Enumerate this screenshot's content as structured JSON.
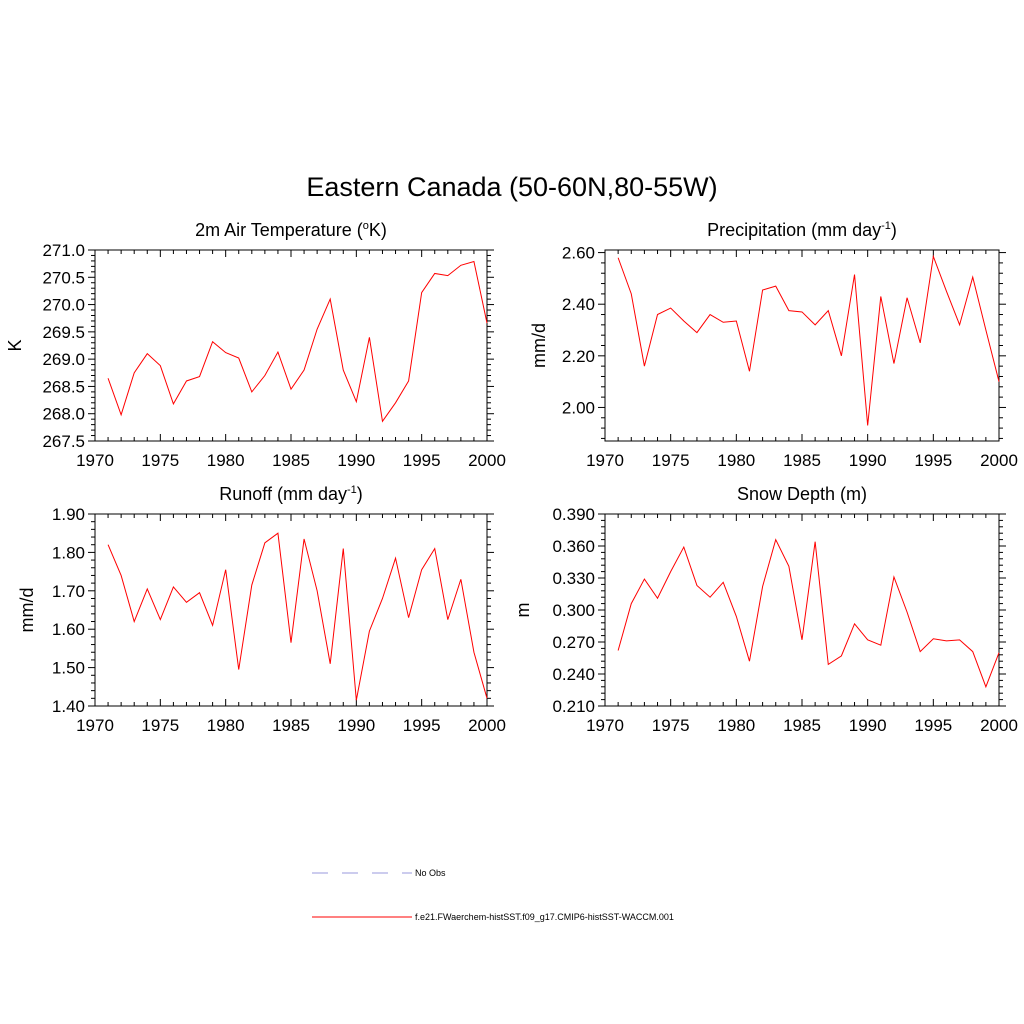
{
  "title": "Eastern Canada (50-60N,80-55W)",
  "colors": {
    "model": "#ff0000",
    "obs": "#9999dd",
    "axis": "#000000"
  },
  "legend": [
    {
      "label": "No Obs",
      "style": "dashed",
      "color": "#9999dd"
    },
    {
      "label": "f.e21.FWaerchem-histSST.f09_g17.CMIP6-histSST-WACCM.001",
      "style": "solid",
      "color": "#ff0000"
    }
  ],
  "chart_data": [
    {
      "type": "line",
      "title": "2m Air Temperature (",
      "title_sup": "o",
      "title_after": "K)",
      "ylabel": "K",
      "xlim": [
        1970,
        2000
      ],
      "ylim": [
        267.5,
        271.0
      ],
      "xticks": [
        1970,
        1975,
        1980,
        1985,
        1990,
        1995,
        2000
      ],
      "yticks": [
        "267.5",
        "268.0",
        "268.5",
        "269.0",
        "269.5",
        "270.0",
        "270.5",
        "271.0"
      ],
      "x": [
        1971,
        1972,
        1973,
        1974,
        1975,
        1976,
        1977,
        1978,
        1979,
        1980,
        1981,
        1982,
        1983,
        1984,
        1985,
        1986,
        1987,
        1988,
        1989,
        1990,
        1991,
        1992,
        1993,
        1994,
        1995,
        1996,
        1997,
        1998,
        1999,
        2000
      ],
      "series": [
        {
          "values": [
            268.65,
            267.98,
            268.75,
            269.1,
            268.88,
            268.18,
            268.6,
            268.68,
            269.32,
            269.12,
            269.02,
            268.4,
            268.7,
            269.13,
            268.45,
            268.8,
            269.55,
            270.1,
            268.8,
            268.22,
            269.4,
            267.86,
            268.2,
            268.6,
            270.22,
            270.57,
            270.53,
            270.72,
            270.79,
            269.66
          ]
        }
      ]
    },
    {
      "type": "line",
      "title": "Precipitation (mm day",
      "title_sup": "-1",
      "title_after": ")",
      "ylabel": "mm/d",
      "xlim": [
        1970,
        2000
      ],
      "ylim": [
        1.87,
        2.61
      ],
      "xticks": [
        1970,
        1975,
        1980,
        1985,
        1990,
        1995,
        2000
      ],
      "yticks": [
        "2.00",
        "2.20",
        "2.40",
        "2.60"
      ],
      "x": [
        1971,
        1972,
        1973,
        1974,
        1975,
        1976,
        1977,
        1978,
        1979,
        1980,
        1981,
        1982,
        1983,
        1984,
        1985,
        1986,
        1987,
        1988,
        1989,
        1990,
        1991,
        1992,
        1993,
        1994,
        1995,
        1996,
        1997,
        1998,
        1999,
        2000
      ],
      "series": [
        {
          "values": [
            2.58,
            2.44,
            2.16,
            2.36,
            2.385,
            2.335,
            2.29,
            2.36,
            2.33,
            2.335,
            2.14,
            2.455,
            2.47,
            2.375,
            2.37,
            2.32,
            2.375,
            2.2,
            2.515,
            1.93,
            2.43,
            2.17,
            2.425,
            2.25,
            2.585,
            2.45,
            2.32,
            2.505,
            2.3,
            2.1
          ]
        }
      ]
    },
    {
      "type": "line",
      "title": "Runoff (mm day",
      "title_sup": "-1",
      "title_after": ")",
      "ylabel": "mm/d",
      "xlim": [
        1970,
        2000
      ],
      "ylim": [
        1.4,
        1.9
      ],
      "xticks": [
        1970,
        1975,
        1980,
        1985,
        1990,
        1995,
        2000
      ],
      "yticks": [
        "1.40",
        "1.50",
        "1.60",
        "1.70",
        "1.80",
        "1.90"
      ],
      "x": [
        1971,
        1972,
        1973,
        1974,
        1975,
        1976,
        1977,
        1978,
        1979,
        1980,
        1981,
        1982,
        1983,
        1984,
        1985,
        1986,
        1987,
        1988,
        1989,
        1990,
        1991,
        1992,
        1993,
        1994,
        1995,
        1996,
        1997,
        1998,
        1999,
        2000
      ],
      "series": [
        {
          "values": [
            1.82,
            1.74,
            1.62,
            1.705,
            1.625,
            1.71,
            1.67,
            1.695,
            1.61,
            1.755,
            1.495,
            1.715,
            1.825,
            1.85,
            1.565,
            1.835,
            1.7,
            1.51,
            1.81,
            1.415,
            1.595,
            1.68,
            1.785,
            1.63,
            1.755,
            1.81,
            1.625,
            1.73,
            1.54,
            1.42
          ]
        }
      ]
    },
    {
      "type": "line",
      "title": "Snow Depth (m)",
      "title_sup": "",
      "title_after": "",
      "ylabel": "m",
      "xlim": [
        1970,
        2000
      ],
      "ylim": [
        0.21,
        0.39
      ],
      "xticks": [
        1970,
        1975,
        1980,
        1985,
        1990,
        1995,
        2000
      ],
      "yticks": [
        "0.210",
        "0.240",
        "0.270",
        "0.300",
        "0.330",
        "0.360",
        "0.390"
      ],
      "x": [
        1971,
        1972,
        1973,
        1974,
        1975,
        1976,
        1977,
        1978,
        1979,
        1980,
        1981,
        1982,
        1983,
        1984,
        1985,
        1986,
        1987,
        1988,
        1989,
        1990,
        1991,
        1992,
        1993,
        1994,
        1995,
        1996,
        1997,
        1998,
        1999,
        2000
      ],
      "series": [
        {
          "values": [
            0.262,
            0.306,
            0.329,
            0.311,
            0.336,
            0.359,
            0.323,
            0.312,
            0.326,
            0.294,
            0.252,
            0.322,
            0.366,
            0.341,
            0.272,
            0.364,
            0.249,
            0.257,
            0.287,
            0.272,
            0.267,
            0.331,
            0.298,
            0.261,
            0.273,
            0.271,
            0.272,
            0.261,
            0.228,
            0.26
          ]
        }
      ]
    }
  ]
}
